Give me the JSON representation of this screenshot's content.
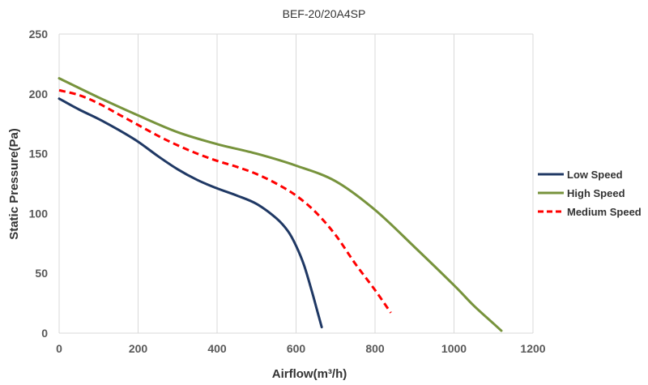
{
  "chart_data": {
    "type": "line",
    "title": "BEF-20/20A4SP",
    "xlabel": "Airflow(m³/h)",
    "ylabel": "Static Pressure(Pa)",
    "xlim": [
      0,
      1200
    ],
    "ylim": [
      0,
      250
    ],
    "xticks": [
      "0",
      "200",
      "400",
      "600",
      "800",
      "1000",
      "1200"
    ],
    "yticks": [
      "0",
      "50",
      "100",
      "150",
      "200",
      "250"
    ],
    "grid": "vertical",
    "legend_position": "right",
    "series": [
      {
        "name": "Low Speed",
        "color": "#1f3864",
        "dash": "solid",
        "x": [
          0,
          50,
          100,
          150,
          200,
          250,
          300,
          350,
          400,
          450,
          500,
          550,
          580,
          600,
          620,
          640,
          655,
          665
        ],
        "y": [
          196,
          187,
          179,
          170,
          160,
          148,
          137,
          128,
          121,
          115,
          108,
          96,
          85,
          73,
          57,
          35,
          17,
          5
        ]
      },
      {
        "name": "High Speed",
        "color": "#77933c",
        "dash": "solid",
        "x": [
          0,
          100,
          200,
          300,
          400,
          500,
          600,
          700,
          800,
          900,
          1000,
          1050,
          1100,
          1120
        ],
        "y": [
          213,
          197,
          182,
          168,
          158,
          150,
          140,
          127,
          103,
          72,
          40,
          23,
          8,
          2
        ]
      },
      {
        "name": "Medium Speed",
        "color": "#ff0000",
        "dash": "dashed",
        "x": [
          0,
          50,
          100,
          150,
          200,
          250,
          300,
          350,
          400,
          450,
          500,
          550,
          600,
          650,
          700,
          750,
          800,
          840
        ],
        "y": [
          203,
          199,
          192,
          183,
          174,
          165,
          157,
          150,
          144,
          139,
          133,
          125,
          115,
          101,
          82,
          58,
          36,
          17
        ]
      }
    ]
  }
}
